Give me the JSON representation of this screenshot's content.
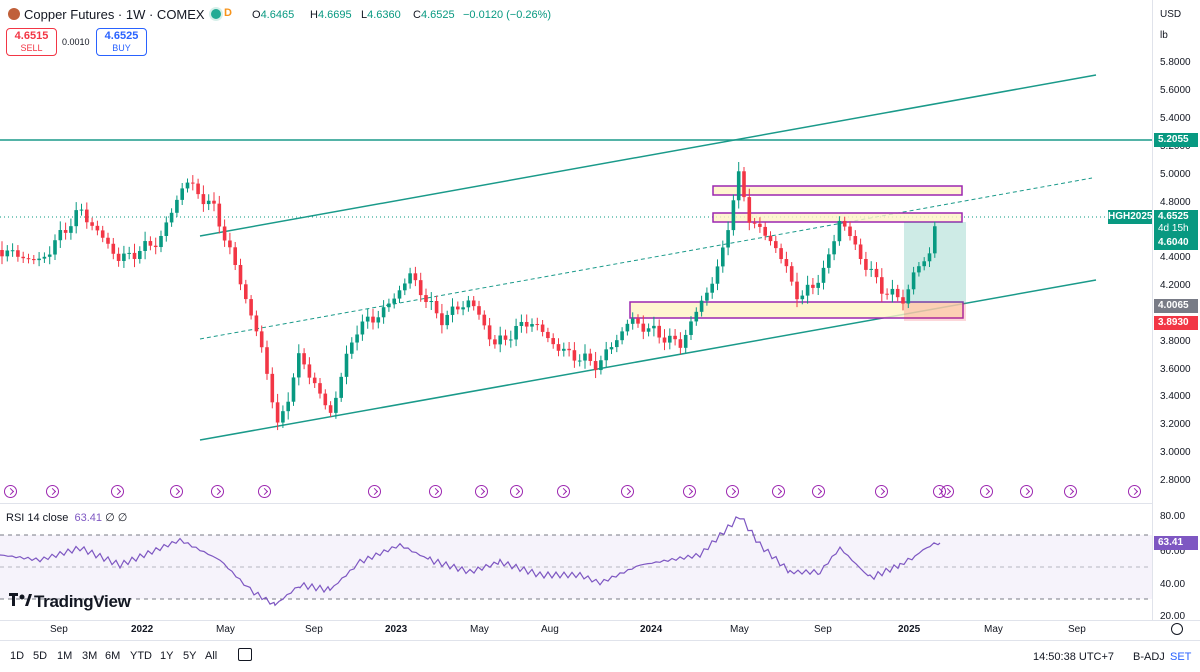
{
  "header": {
    "title": "Copper Futures · 1W · COMEX",
    "delay_badge": "D",
    "ohlc": {
      "open_label": "O",
      "open": "4.6465",
      "high_label": "H",
      "high": "4.6695",
      "low_label": "L",
      "low": "4.6360",
      "close_label": "C",
      "close": "4.6525",
      "change": "−0.0120 (−0.26%)"
    }
  },
  "trade": {
    "sell_price": "4.6515",
    "sell_label": "SELL",
    "spread": "0.0010",
    "buy_price": "4.6525",
    "buy_label": "BUY"
  },
  "price_scale": {
    "currency": "USD",
    "unit": "lb",
    "ticks": [
      "5.8000",
      "5.6000",
      "5.4000",
      "5.2000",
      "5.0000",
      "4.8000",
      "4.4000",
      "4.2000",
      "3.8000",
      "3.6000",
      "3.4000",
      "3.2000",
      "3.0000",
      "2.8000"
    ],
    "labels": {
      "resistance": "5.2055",
      "current": "4.6525",
      "symbol": "HGH2025",
      "countdown": "4d 15h",
      "target": "4.6040",
      "support": "4.0065",
      "stop": "3.8930"
    },
    "colors": {
      "line": "#089981",
      "stop": "#f23645",
      "support_label": "#787b86"
    }
  },
  "rsi": {
    "label": "RSI 14 close",
    "value": "63.41",
    "extra": "∅ ∅",
    "ticks": [
      "80.00",
      "60.00",
      "40.00",
      "20.00"
    ]
  },
  "time_axis": [
    "Sep",
    "2022",
    "May",
    "Sep",
    "2023",
    "May",
    "Aug",
    "2024",
    "May",
    "Sep",
    "2025",
    "May",
    "Sep"
  ],
  "bottom": {
    "ranges": [
      "1D",
      "5D",
      "1M",
      "3M",
      "6M",
      "YTD",
      "1Y",
      "5Y",
      "All"
    ],
    "clock": "14:50:38 UTC+7",
    "adj": "B-ADJ",
    "set": "SET"
  },
  "logo_text": "TradingView",
  "colors": {
    "up": "#089981",
    "down": "#f23645",
    "channel": "#1a9a8a",
    "rsi": "#7e57c2",
    "zone": "#9c27b0"
  }
}
